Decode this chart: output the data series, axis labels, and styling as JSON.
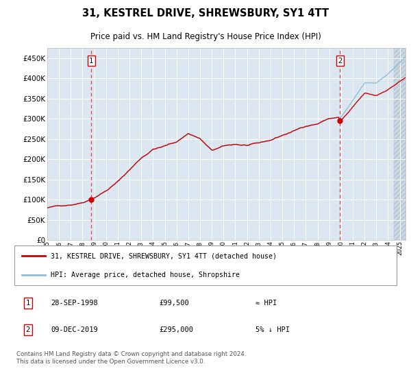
{
  "title": "31, KESTREL DRIVE, SHREWSBURY, SY1 4TT",
  "subtitle": "Price paid vs. HM Land Registry's House Price Index (HPI)",
  "legend_line1": "31, KESTREL DRIVE, SHREWSBURY, SY1 4TT (detached house)",
  "legend_line2": "HPI: Average price, detached house, Shropshire",
  "annotation1_date": "28-SEP-1998",
  "annotation1_price": 99500,
  "annotation1_note": "≈ HPI",
  "annotation2_date": "09-DEC-2019",
  "annotation2_price": 295000,
  "annotation2_note": "5% ↓ HPI",
  "footer": "Contains HM Land Registry data © Crown copyright and database right 2024.\nThis data is licensed under the Open Government Licence v3.0.",
  "background_color": "#dce6f1",
  "hpi_line_color": "#90bcd8",
  "price_line_color": "#cc0000",
  "marker_color": "#cc0000",
  "vline_color": "#dd4444",
  "ylim": [
    0,
    475000
  ],
  "yticks": [
    0,
    50000,
    100000,
    150000,
    200000,
    250000,
    300000,
    350000,
    400000,
    450000
  ],
  "sale1_year": 1998.75,
  "sale1_price": 99500,
  "sale2_year": 2019.92,
  "sale2_price": 295000,
  "xstart": 1995.0,
  "xend": 2025.5
}
